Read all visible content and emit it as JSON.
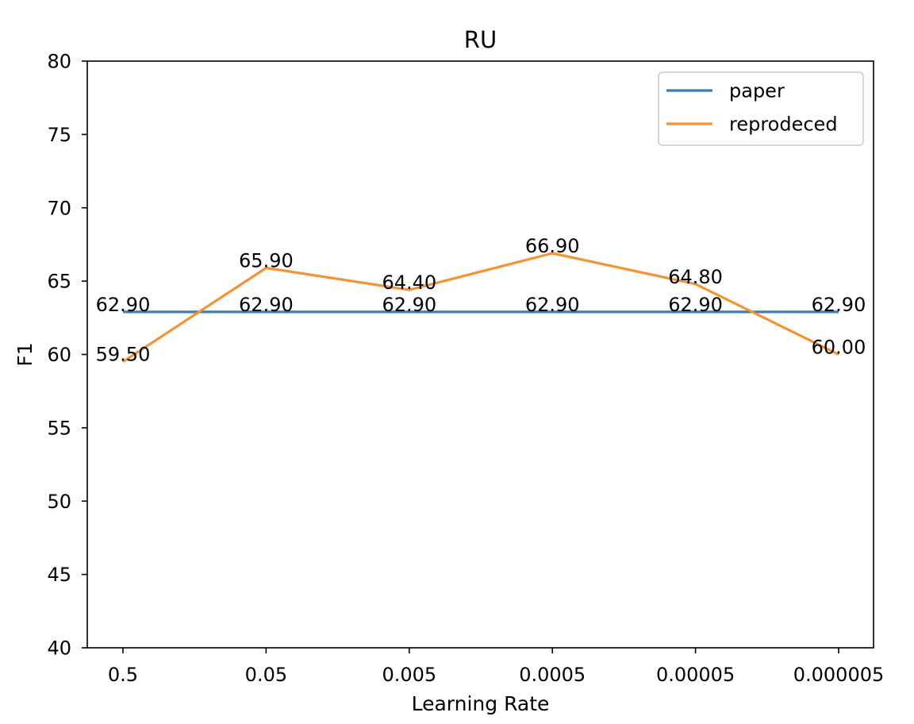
{
  "chart_data": {
    "type": "line",
    "title": "RU",
    "xlabel": "Learning Rate",
    "ylabel": "F1",
    "categories": [
      "0.5",
      "0.05",
      "0.005",
      "0.0005",
      "0.00005",
      "0.000005"
    ],
    "ylim": [
      40,
      80
    ],
    "yticks": [
      40,
      45,
      50,
      55,
      60,
      65,
      70,
      75,
      80
    ],
    "grid": false,
    "legend_position": "top-right",
    "series": [
      {
        "name": "paper",
        "color": "#3a7fb8",
        "values": [
          62.9,
          62.9,
          62.9,
          62.9,
          62.9,
          62.9
        ],
        "labels": [
          "62.90",
          "62.90",
          "62.90",
          "62.90",
          "62.90",
          "62.90"
        ]
      },
      {
        "name": "reprodeced",
        "color": "#f39433",
        "values": [
          59.5,
          65.9,
          64.4,
          66.9,
          64.8,
          60.0
        ],
        "labels": [
          "59.50",
          "65.90",
          "64.40",
          "66.90",
          "64.80",
          "60.00"
        ]
      }
    ]
  }
}
